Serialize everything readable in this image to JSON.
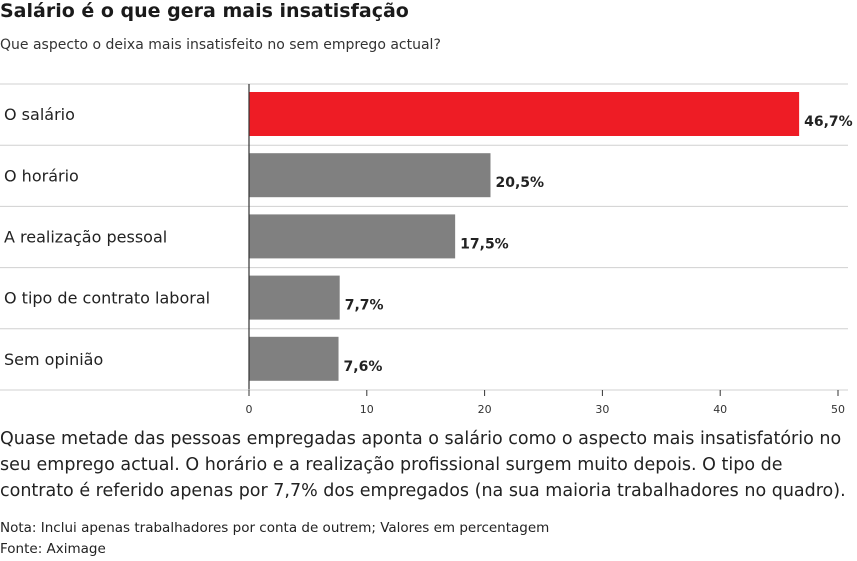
{
  "title": "Salário é o que gera mais insatisfação",
  "subtitle": "Que aspecto o deixa mais insatisfeito no sem emprego actual?",
  "description": "Quase metade das pessoas empregadas aponta o salário como o aspecto mais insatisfatório no seu emprego actual. O horário e a realização profissional surgem muito depois. O tipo de contrato é referido apenas por 7,7% dos empregados (na sua maioria trabalhadores no quadro).",
  "note": "Nota: Inclui apenas trabalhadores por conta de outrem; Valores em percentagem",
  "source": "Fonte: Aximage",
  "colors": {
    "highlight": "#ee1c25",
    "bar": "#808080",
    "grid": "#d0d0d0",
    "axis": "#333333"
  },
  "chart_data": {
    "type": "bar",
    "orientation": "horizontal",
    "categories": [
      "O salário",
      "O horário",
      "A realização pessoal",
      "O tipo de contrato laboral",
      "Sem opinião"
    ],
    "values": [
      46.7,
      20.5,
      17.5,
      7.7,
      7.6
    ],
    "value_labels": [
      "46,7%",
      "20,5%",
      "17,5%",
      "7,7%",
      "7,6%"
    ],
    "highlight_index": 0,
    "xlim": [
      0,
      50
    ],
    "xticks": [
      0,
      10,
      20,
      30,
      40,
      50
    ],
    "grid": true
  }
}
